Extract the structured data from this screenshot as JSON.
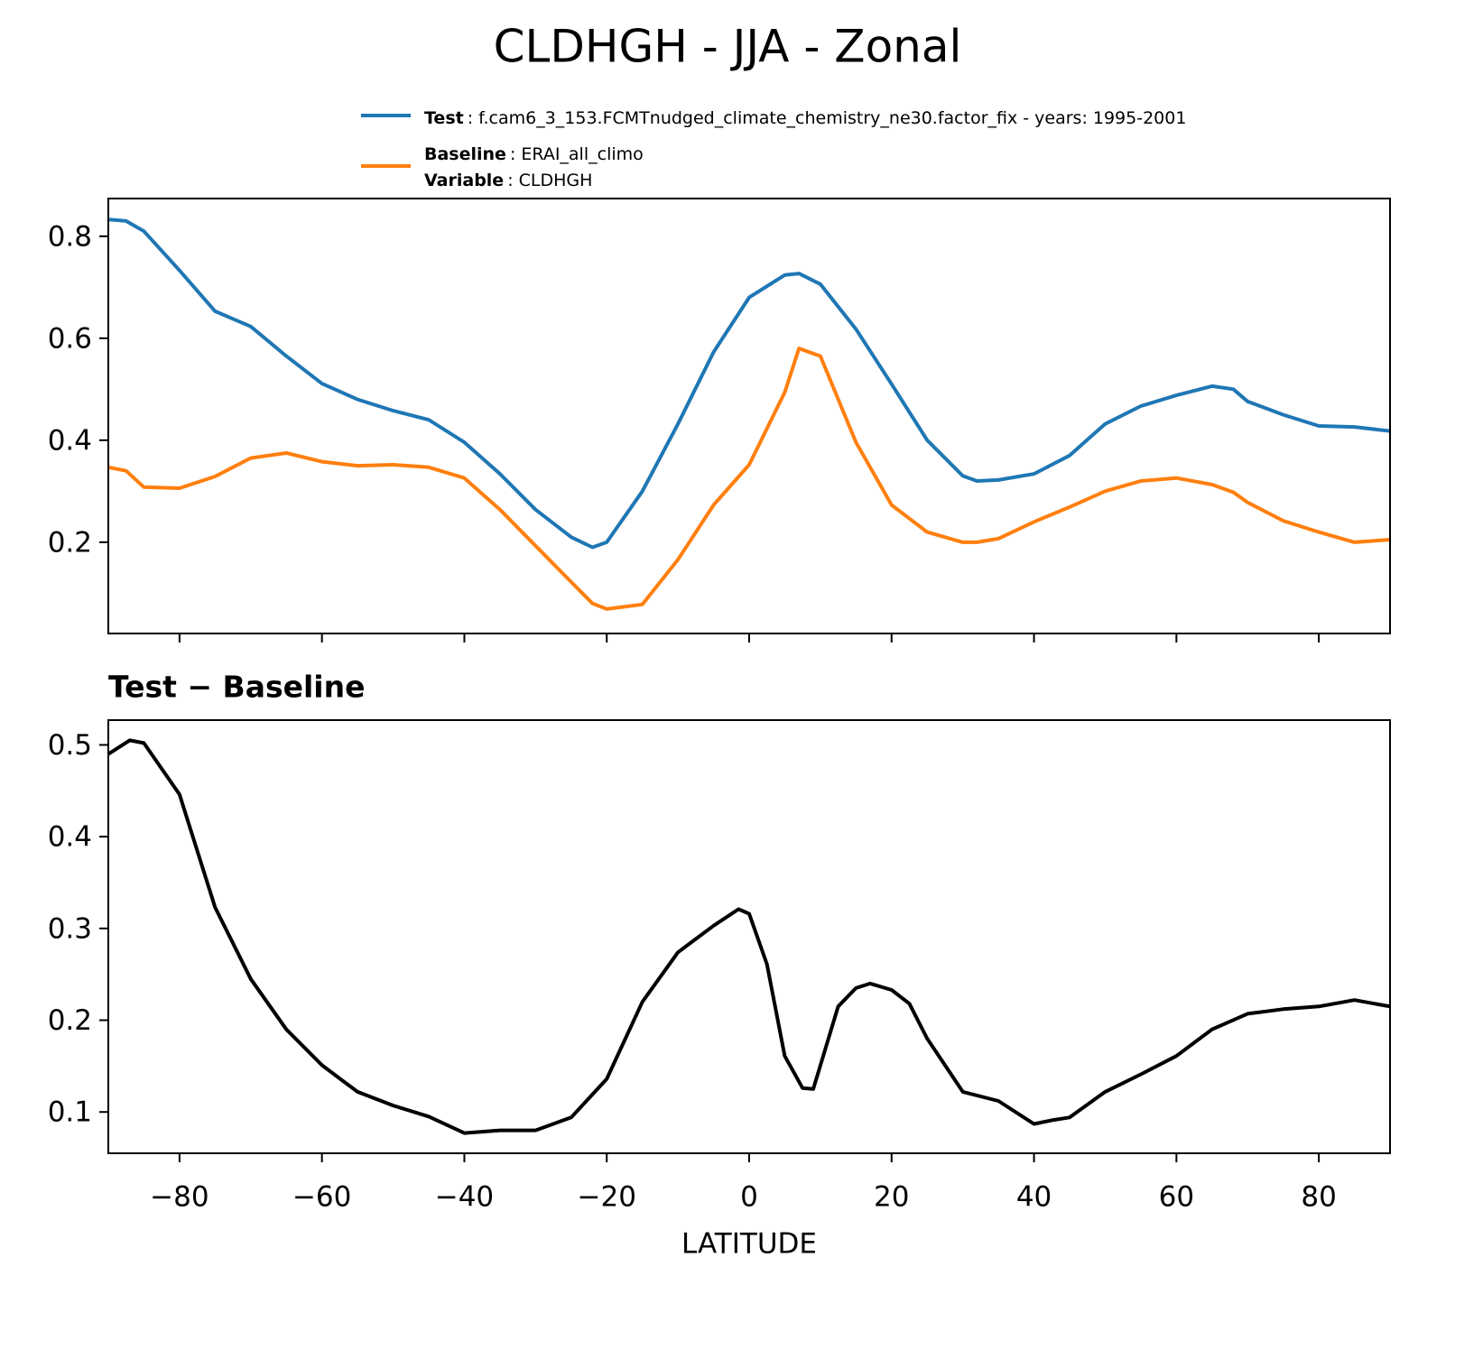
{
  "chart_data": [
    {
      "type": "line",
      "title": "CLDHGH - JJA - Zonal",
      "x": [
        -90,
        -87.5,
        -85,
        -80,
        -75,
        -70,
        -65,
        -60,
        -55,
        -50,
        -45,
        -40,
        -35,
        -30,
        -25,
        -22,
        -20,
        -15,
        -10,
        -5,
        0,
        5,
        7,
        10,
        15,
        20,
        25,
        30,
        32,
        35,
        40,
        45,
        50,
        55,
        60,
        65,
        68,
        70,
        75,
        80,
        85,
        90
      ],
      "series": [
        {
          "name": "Test",
          "legend_text": ": f.cam6_3_153.FCMTnudged_climate_chemistry_ne30.factor_fix - years: 1995-2001",
          "color": "#1f77b4",
          "values": [
            0.833,
            0.83,
            0.81,
            0.733,
            0.653,
            0.623,
            0.565,
            0.511,
            0.48,
            0.458,
            0.44,
            0.396,
            0.334,
            0.264,
            0.21,
            0.19,
            0.2,
            0.3,
            0.432,
            0.573,
            0.68,
            0.724,
            0.727,
            0.706,
            0.618,
            0.51,
            0.4,
            0.33,
            0.32,
            0.322,
            0.334,
            0.37,
            0.432,
            0.467,
            0.488,
            0.506,
            0.5,
            0.476,
            0.45,
            0.428,
            0.426,
            0.418
          ]
        },
        {
          "name": "Baseline",
          "legend_text": ": ERAI_all_climo",
          "color": "#ff7f0e",
          "values": [
            0.347,
            0.34,
            0.308,
            0.306,
            0.329,
            0.365,
            0.375,
            0.358,
            0.35,
            0.352,
            0.347,
            0.326,
            0.264,
            0.193,
            0.122,
            0.08,
            0.069,
            0.078,
            0.166,
            0.273,
            0.352,
            0.494,
            0.58,
            0.565,
            0.396,
            0.273,
            0.22,
            0.2,
            0.2,
            0.207,
            0.24,
            0.269,
            0.3,
            0.32,
            0.326,
            0.313,
            0.298,
            0.278,
            0.242,
            0.22,
            0.2,
            0.205
          ]
        }
      ],
      "legend_extra_name": "Variable",
      "legend_extra_text": ": CLDHGH",
      "xlim": [
        -90,
        90
      ],
      "xticks": [
        -80,
        -60,
        -40,
        -20,
        0,
        20,
        40,
        60,
        80
      ],
      "show_xtick_labels": false,
      "ylim": [
        0.021,
        0.874
      ],
      "yticks": [
        0.2,
        0.4,
        0.6,
        0.8
      ]
    },
    {
      "type": "line",
      "title": "Test − Baseline",
      "xlabel": "LATITUDE",
      "x": [
        -90,
        -87,
        -85,
        -80,
        -75,
        -70,
        -65,
        -60,
        -55,
        -50,
        -45,
        -40,
        -35,
        -30,
        -25,
        -20,
        -15,
        -10,
        -5,
        -1.5,
        0,
        2.5,
        5,
        7.5,
        9,
        12.5,
        15,
        17,
        20,
        22.5,
        25,
        30,
        35,
        40,
        42.5,
        45,
        50,
        55,
        60,
        65,
        70,
        75,
        80,
        85,
        90
      ],
      "series": [
        {
          "name": "Test − Baseline",
          "color": "#000000",
          "values": [
            0.49,
            0.505,
            0.502,
            0.446,
            0.323,
            0.245,
            0.19,
            0.151,
            0.122,
            0.107,
            0.095,
            0.077,
            0.08,
            0.08,
            0.094,
            0.136,
            0.22,
            0.274,
            0.303,
            0.321,
            0.316,
            0.261,
            0.161,
            0.126,
            0.125,
            0.215,
            0.235,
            0.24,
            0.233,
            0.218,
            0.18,
            0.122,
            0.112,
            0.087,
            0.091,
            0.094,
            0.122,
            0.141,
            0.161,
            0.19,
            0.207,
            0.212,
            0.215,
            0.222,
            0.215
          ]
        }
      ],
      "xlim": [
        -90,
        90
      ],
      "xticks": [
        {
          "value": -80,
          "label": "−80"
        },
        {
          "value": -60,
          "label": "−60"
        },
        {
          "value": -40,
          "label": "−40"
        },
        {
          "value": -20,
          "label": "−20"
        },
        0,
        20,
        40,
        60,
        80
      ],
      "ylim": [
        0.055,
        0.527
      ],
      "yticks": [
        0.1,
        0.2,
        0.3,
        0.4,
        0.5
      ]
    }
  ]
}
